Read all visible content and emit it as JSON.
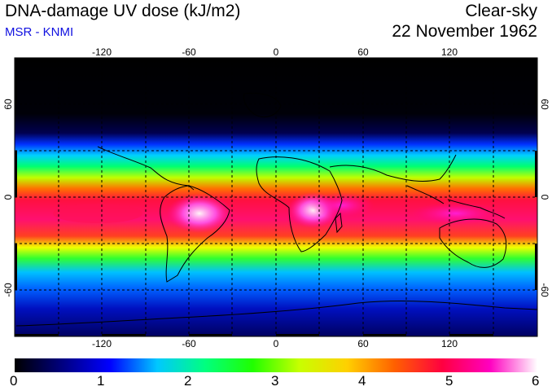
{
  "header": {
    "title": "DNA-damage UV dose (kJ/m2)",
    "subtitle": "MSR - KNMI",
    "condition": "Clear-sky",
    "date": "22 November 1962"
  },
  "map": {
    "lon_ticks": [
      "-120",
      "-60",
      "0",
      "60",
      "120"
    ],
    "lat_ticks": [
      "60",
      "0",
      "-60"
    ],
    "colors": {
      "land_outline": "#000000",
      "frame": "#000000"
    }
  },
  "colorbar": {
    "min": 0,
    "max": 6,
    "labels": [
      "0",
      "1",
      "2",
      "3",
      "4",
      "5",
      "6"
    ],
    "stops": [
      "#000000",
      "#000080",
      "#0000ff",
      "#00c8ff",
      "#00ff80",
      "#20ff00",
      "#c8ff00",
      "#ffd000",
      "#ff6000",
      "#ff0040",
      "#ff00c0",
      "#ffffff"
    ]
  }
}
